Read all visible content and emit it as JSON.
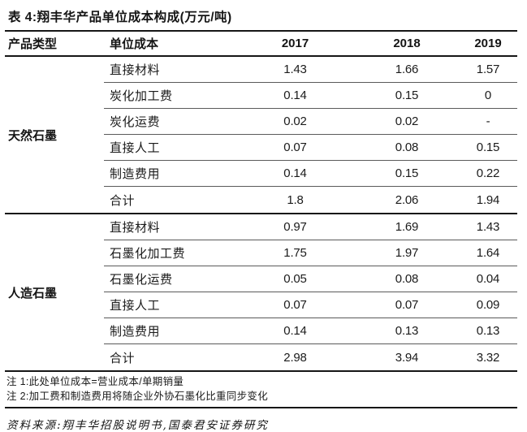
{
  "title": "表 4:翔丰华产品单位成本构成(万元/吨)",
  "table": {
    "headers": [
      "产品类型",
      "单位成本",
      "2017",
      "2018",
      "2019"
    ],
    "groups": [
      {
        "name": "天然石墨",
        "rows": [
          {
            "label": "直接材料",
            "values": [
              "1.43",
              "1.66",
              "1.57"
            ]
          },
          {
            "label": "炭化加工费",
            "values": [
              "0.14",
              "0.15",
              "0"
            ]
          },
          {
            "label": "炭化运费",
            "values": [
              "0.02",
              "0.02",
              "-"
            ]
          },
          {
            "label": "直接人工",
            "values": [
              "0.07",
              "0.08",
              "0.15"
            ]
          },
          {
            "label": "制造费用",
            "values": [
              "0.14",
              "0.15",
              "0.22"
            ]
          },
          {
            "label": "合计",
            "values": [
              "1.8",
              "2.06",
              "1.94"
            ]
          }
        ]
      },
      {
        "name": "人造石墨",
        "rows": [
          {
            "label": "直接材料",
            "values": [
              "0.97",
              "1.69",
              "1.43"
            ]
          },
          {
            "label": "石墨化加工费",
            "values": [
              "1.75",
              "1.97",
              "1.64"
            ]
          },
          {
            "label": "石墨化运费",
            "values": [
              "0.05",
              "0.08",
              "0.04"
            ]
          },
          {
            "label": "直接人工",
            "values": [
              "0.07",
              "0.07",
              "0.09"
            ]
          },
          {
            "label": "制造费用",
            "values": [
              "0.14",
              "0.13",
              "0.13"
            ]
          },
          {
            "label": "合计",
            "values": [
              "2.98",
              "3.94",
              "3.32"
            ]
          }
        ]
      }
    ]
  },
  "notes": [
    "注 1:此处单位成本=营业成本/单期销量",
    "注 2:加工费和制造费用将随企业外协石墨化比重同步变化"
  ],
  "source": "资料来源:翔丰华招股说明书,国泰君安证券研究"
}
